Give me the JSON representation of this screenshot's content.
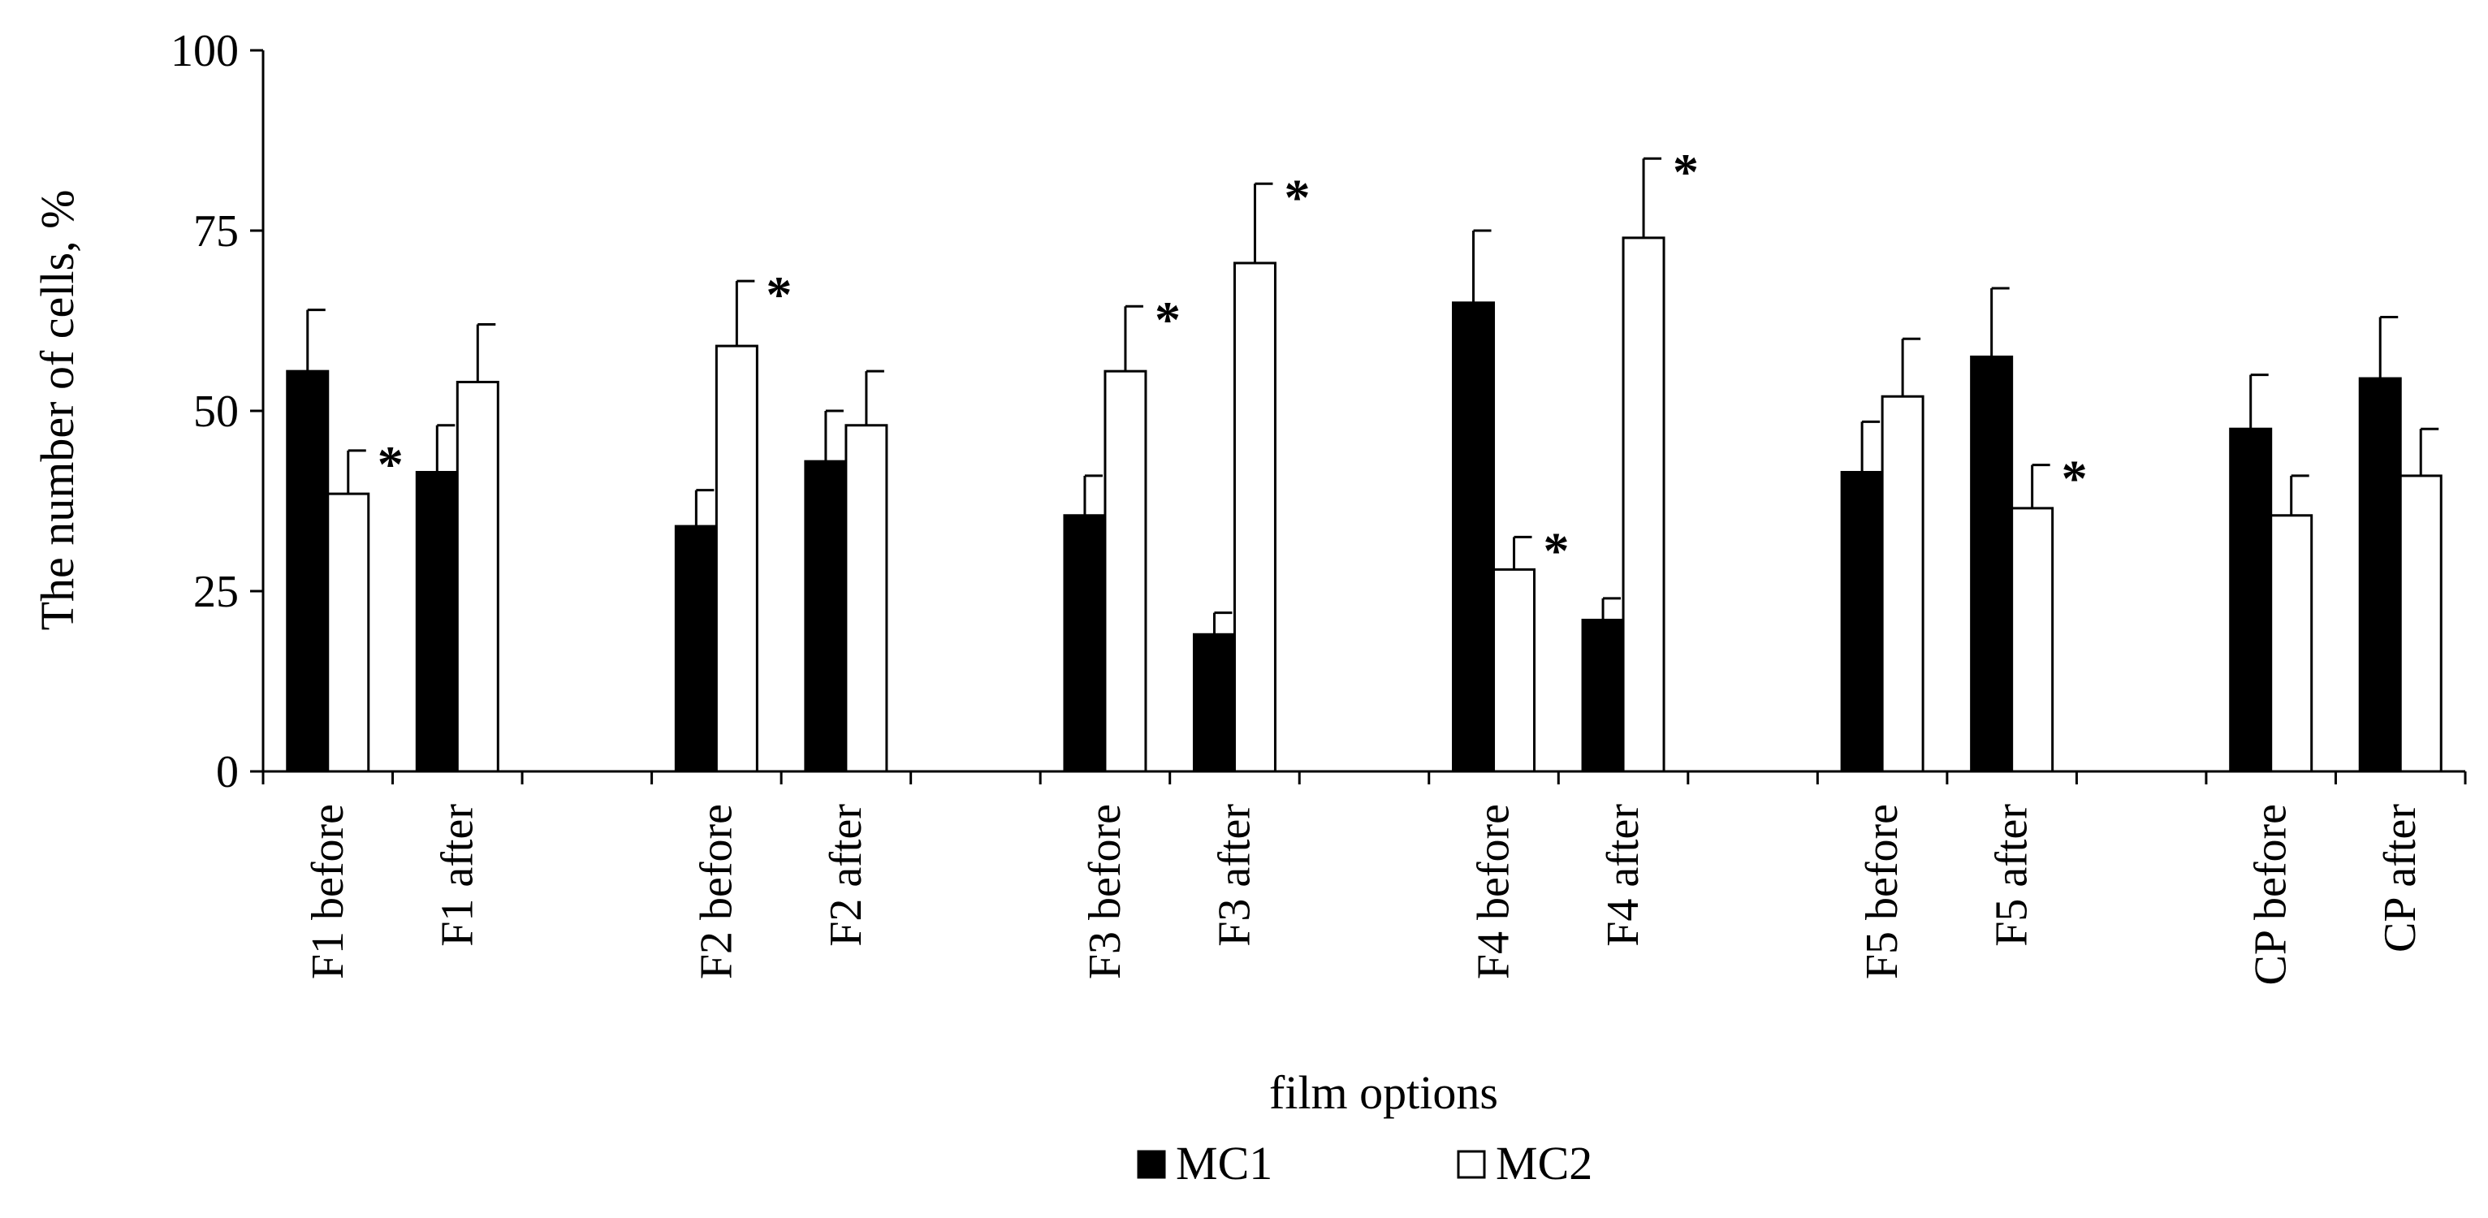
{
  "chart_data": {
    "type": "bar",
    "xlabel": "film options",
    "ylabel": "The number of cells, %",
    "ylim": [
      0,
      100
    ],
    "yticks": [
      0,
      25,
      50,
      75,
      100
    ],
    "categories": [
      "F1 before",
      "F1 after",
      "",
      "F2 before",
      "F2 after",
      "",
      "F3 before",
      "F3 after",
      "",
      "F4 before",
      "F4 after",
      "",
      "F5 before",
      "F5 after",
      "",
      "CP before",
      "CP after"
    ],
    "series": [
      {
        "name": "MC1",
        "color": "#000000",
        "values": [
          55.5,
          41.5,
          null,
          34,
          43,
          null,
          35.5,
          19,
          null,
          65,
          21,
          null,
          41.5,
          57.5,
          null,
          47.5,
          54.5
        ],
        "errors": [
          8.5,
          6.5,
          null,
          5,
          7,
          null,
          5.5,
          3,
          null,
          10,
          3,
          null,
          7,
          9.5,
          null,
          7.5,
          8.5
        ]
      },
      {
        "name": "MC2",
        "color": "#ffffff",
        "values": [
          38.5,
          54,
          null,
          59,
          48,
          null,
          55.5,
          70.5,
          null,
          28,
          74,
          null,
          52,
          36.5,
          null,
          35.5,
          41
        ],
        "errors": [
          6,
          8,
          null,
          9,
          7.5,
          null,
          9,
          11,
          null,
          4.5,
          11,
          null,
          8,
          6,
          null,
          5.5,
          6.5
        ]
      }
    ],
    "significance_marker": "*",
    "significance": [
      {
        "category": "F1 before",
        "series": "MC2"
      },
      {
        "category": "F2 before",
        "series": "MC2"
      },
      {
        "category": "F3 before",
        "series": "MC2"
      },
      {
        "category": "F3 after",
        "series": "MC2"
      },
      {
        "category": "F4 before",
        "series": "MC2"
      },
      {
        "category": "F4 after",
        "series": "MC2"
      },
      {
        "category": "F5 after",
        "series": "MC2"
      }
    ],
    "grid": false,
    "legend_position": "bottom-center"
  }
}
